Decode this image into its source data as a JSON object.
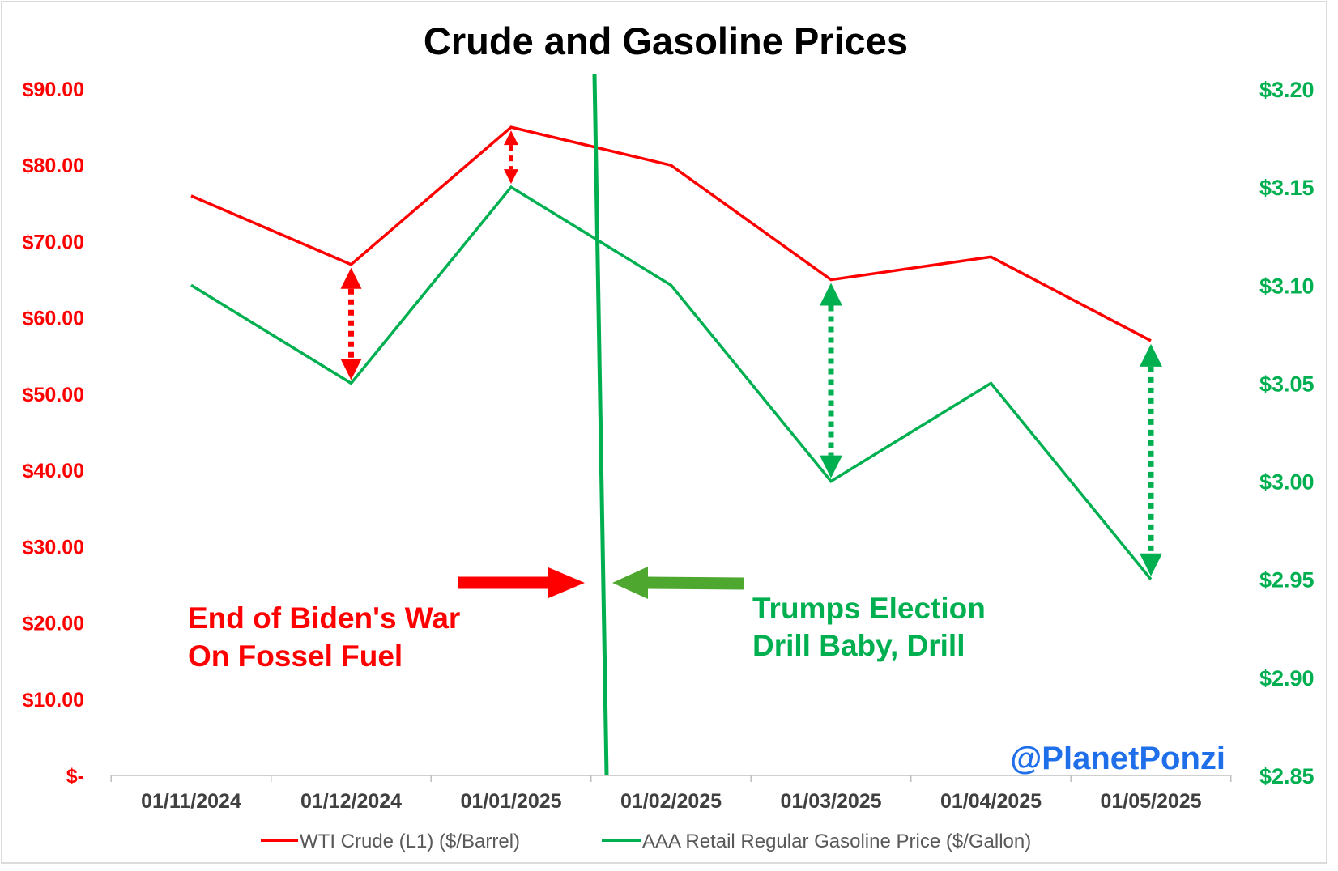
{
  "chart_data": {
    "type": "line",
    "title": "Crude and Gasoline Prices",
    "categories": [
      "01/11/2024",
      "01/12/2024",
      "01/01/2025",
      "01/02/2025",
      "01/03/2025",
      "01/04/2025",
      "01/05/2025"
    ],
    "series": [
      {
        "name": "WTI Crude (L1) ($/Barrel)",
        "axis": "left",
        "color": "#ff0000",
        "values": [
          76,
          67,
          85,
          80,
          65,
          68,
          57
        ]
      },
      {
        "name": "AAA Retail Regular Gasoline Price ($/Gallon)",
        "axis": "right",
        "color": "#00b050",
        "values": [
          3.1,
          3.05,
          3.15,
          3.1,
          3.0,
          3.05,
          2.95
        ]
      }
    ],
    "y_left": {
      "min": 0,
      "max": 90,
      "ticks": [
        "$-",
        "$10.00",
        "$20.00",
        "$30.00",
        "$40.00",
        "$50.00",
        "$60.00",
        "$70.00",
        "$80.00",
        "$90.00"
      ],
      "color": "#ff0000"
    },
    "y_right": {
      "min": 2.85,
      "max": 3.2,
      "ticks": [
        "$2.85",
        "$2.90",
        "$2.95",
        "$3.00",
        "$3.05",
        "$3.10",
        "$3.15",
        "$3.20"
      ],
      "color": "#00b050"
    },
    "grid": false,
    "legend_position": "bottom",
    "annotations": {
      "left_text": [
        "End of Biden's War",
        "On Fossel Fuel"
      ],
      "right_text": [
        "Trumps Election",
        "Drill Baby, Drill"
      ],
      "watermark": "@PlanetPonzi"
    }
  }
}
